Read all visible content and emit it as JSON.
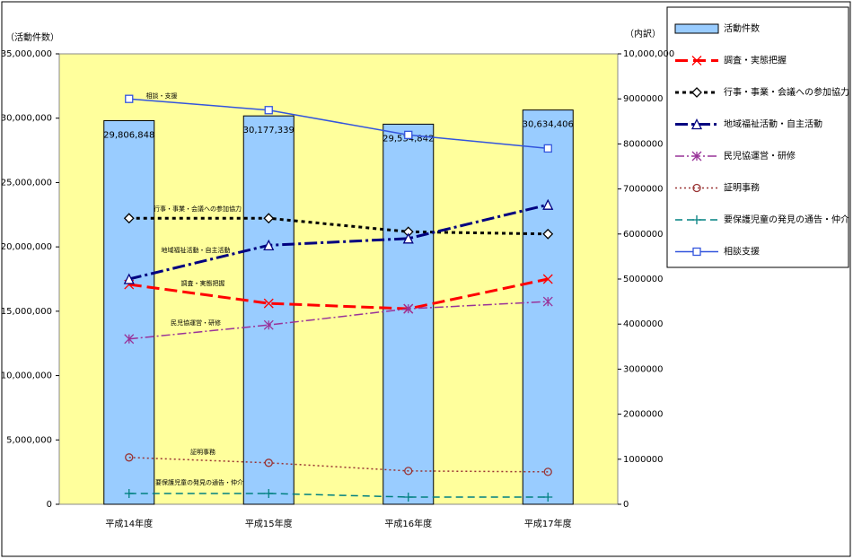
{
  "chart_data": {
    "type": "bar",
    "ylabel": "（活動件数）",
    "y2label": "（内訳）",
    "categories": [
      "平成14年度",
      "平成15年度",
      "平成16年度",
      "平成17年度"
    ],
    "ylim": [
      0,
      35000000
    ],
    "yticks": [
      0,
      {
        "value": 5000000,
        "label": "5,000,000"
      },
      {
        "value": 10000000,
        "label": "10,000,000"
      },
      {
        "value": 15000000,
        "label": "15,000,000"
      },
      {
        "value": 20000000,
        "label": "20,000,000"
      },
      {
        "value": 25000000,
        "label": "25,000,000"
      },
      {
        "value": 30000000,
        "label": "30,000,000"
      },
      {
        "value": 35000000,
        "label": "35,000,000"
      }
    ],
    "y2lim": [
      0,
      10000000
    ],
    "y2ticks": [
      0,
      1000000,
      2000000,
      3000000,
      4000000,
      5000000,
      6000000,
      7000000,
      8000000,
      9000000,
      {
        "value": 10000000,
        "label": "10,000,000"
      }
    ],
    "series": [
      {
        "name": "活動件数",
        "type": "bar",
        "color": "#99ccff",
        "values": [
          29806848,
          30177339,
          29534842,
          30634406
        ],
        "value_labels": [
          "29,806,848",
          "30,177,339",
          "29,534,842",
          "30,634,406"
        ]
      },
      {
        "name": "調査・実態把握",
        "type": "line",
        "axis": "y2",
        "color": "#ff0000",
        "line_style": "long-dash",
        "marker": "x",
        "values": [
          4880000,
          4460000,
          4340000,
          5000000
        ]
      },
      {
        "name": "行事・事業・会議への参加協力",
        "type": "line",
        "axis": "y2",
        "color": "#000000",
        "line_style": "dot",
        "marker": "diamond",
        "values": [
          6350000,
          6350000,
          6050000,
          6000000
        ]
      },
      {
        "name": "地域福祉活動・自主活動",
        "type": "line",
        "axis": "y2",
        "color": "#000080",
        "line_style": "dash-dot",
        "marker": "triangle",
        "values": [
          5000000,
          5750000,
          5900000,
          6650000
        ]
      },
      {
        "name": "民児協運営・研修",
        "type": "line",
        "axis": "y2",
        "color": "#993399",
        "line_style": "dash-dot-thin",
        "marker": "asterisk",
        "values": [
          3670000,
          3980000,
          4340000,
          4500000
        ]
      },
      {
        "name": "証明事務",
        "type": "line",
        "axis": "y2",
        "color": "#993333",
        "line_style": "fine-dot",
        "marker": "circle",
        "values": [
          1040000,
          920000,
          740000,
          720000
        ]
      },
      {
        "name": "要保護児童の発見の通告・仲介",
        "type": "line",
        "axis": "y2",
        "color": "#008080",
        "line_style": "dash",
        "marker": "plus",
        "values": [
          240000,
          240000,
          160000,
          160000
        ]
      },
      {
        "name": "相談支援",
        "type": "line",
        "axis": "y2",
        "color": "#3355dd",
        "line_style": "solid",
        "marker": "square",
        "values": [
          9000000,
          8750000,
          8200000,
          7900000
        ]
      }
    ],
    "annotations": [
      "調査・実態把握",
      "行事・事業・会議への参加協力",
      "地域福祉活動・自主活動",
      "民児協運営・研修",
      "証明事務",
      "要保護児童の発見の通告・仲介",
      "相談・支援"
    ]
  }
}
